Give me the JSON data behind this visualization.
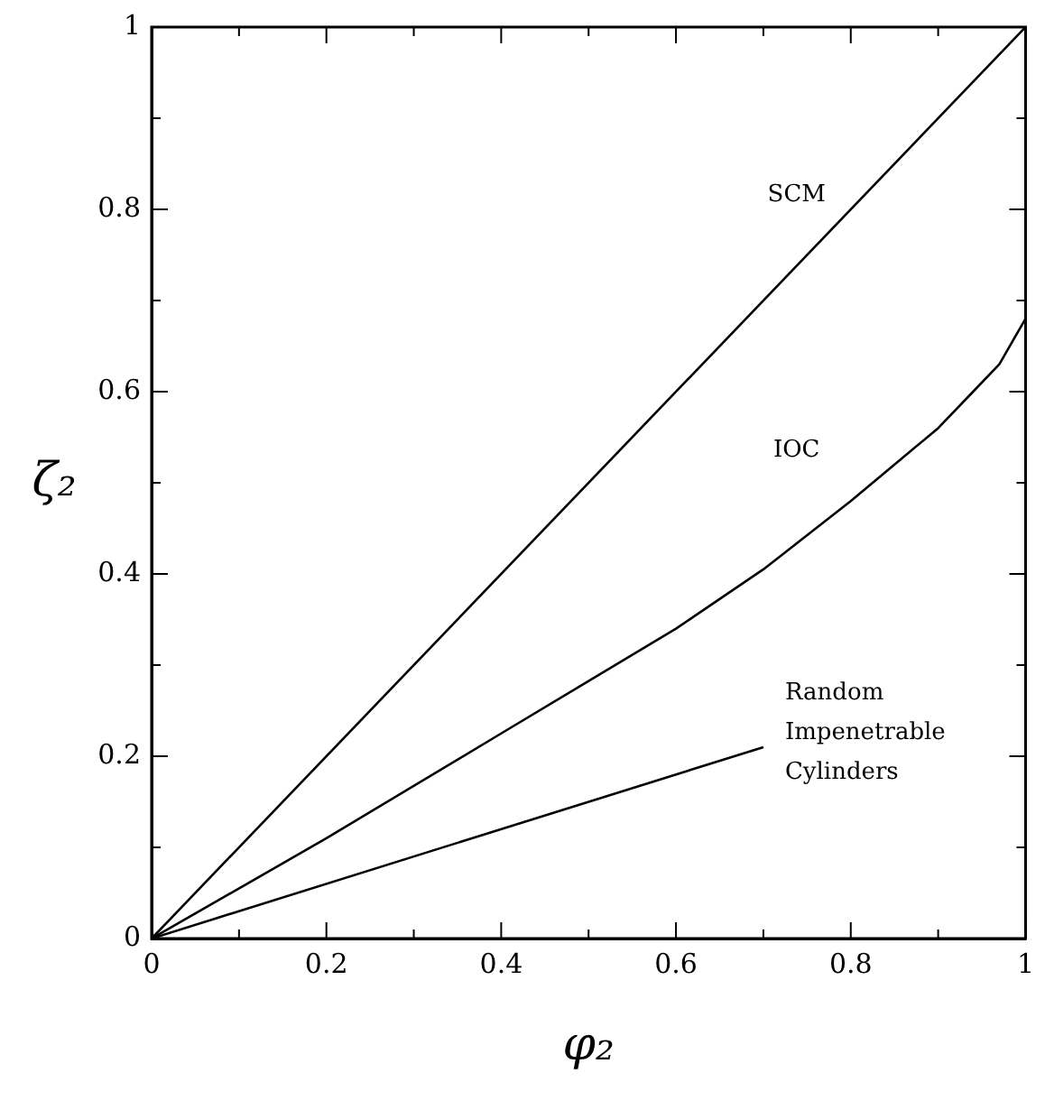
{
  "chart_data": {
    "type": "line",
    "xlabel": "φ₂",
    "ylabel": "ζ₂",
    "series": [
      {
        "name": "SCM",
        "color": "#000000",
        "x": [
          0,
          1
        ],
        "values": [
          0,
          1
        ]
      },
      {
        "name": "IOC",
        "color": "#000000",
        "x": [
          0,
          0.2,
          0.4,
          0.6,
          0.7,
          0.8,
          0.9,
          0.94,
          0.97,
          1
        ],
        "values": [
          0,
          0.11,
          0.225,
          0.34,
          0.405,
          0.48,
          0.56,
          0.6,
          0.63,
          0.68
        ]
      },
      {
        "name": "Random Impenetrable Cylinders",
        "color": "#000000",
        "x": [
          0,
          0.7
        ],
        "values": [
          0,
          0.21
        ]
      }
    ],
    "xlim": [
      0,
      1
    ],
    "ylim": [
      0,
      1
    ],
    "xticks": [
      0,
      {
        "value": 0.1,
        "label": null
      },
      0.2,
      {
        "value": 0.3,
        "label": null
      },
      0.4,
      {
        "value": 0.5,
        "label": null
      },
      0.6,
      {
        "value": 0.7,
        "label": null
      },
      0.8,
      {
        "value": 0.9,
        "label": null
      },
      1
    ],
    "yticks": [
      0,
      {
        "value": 0.1,
        "label": null
      },
      0.2,
      {
        "value": 0.3,
        "label": null
      },
      0.4,
      {
        "value": 0.5,
        "label": null
      },
      0.6,
      {
        "value": 0.7,
        "label": null
      },
      0.8,
      {
        "value": 0.9,
        "label": null
      },
      1
    ],
    "grid": false,
    "legend": false,
    "marker": "none",
    "line_style": "solid"
  }
}
